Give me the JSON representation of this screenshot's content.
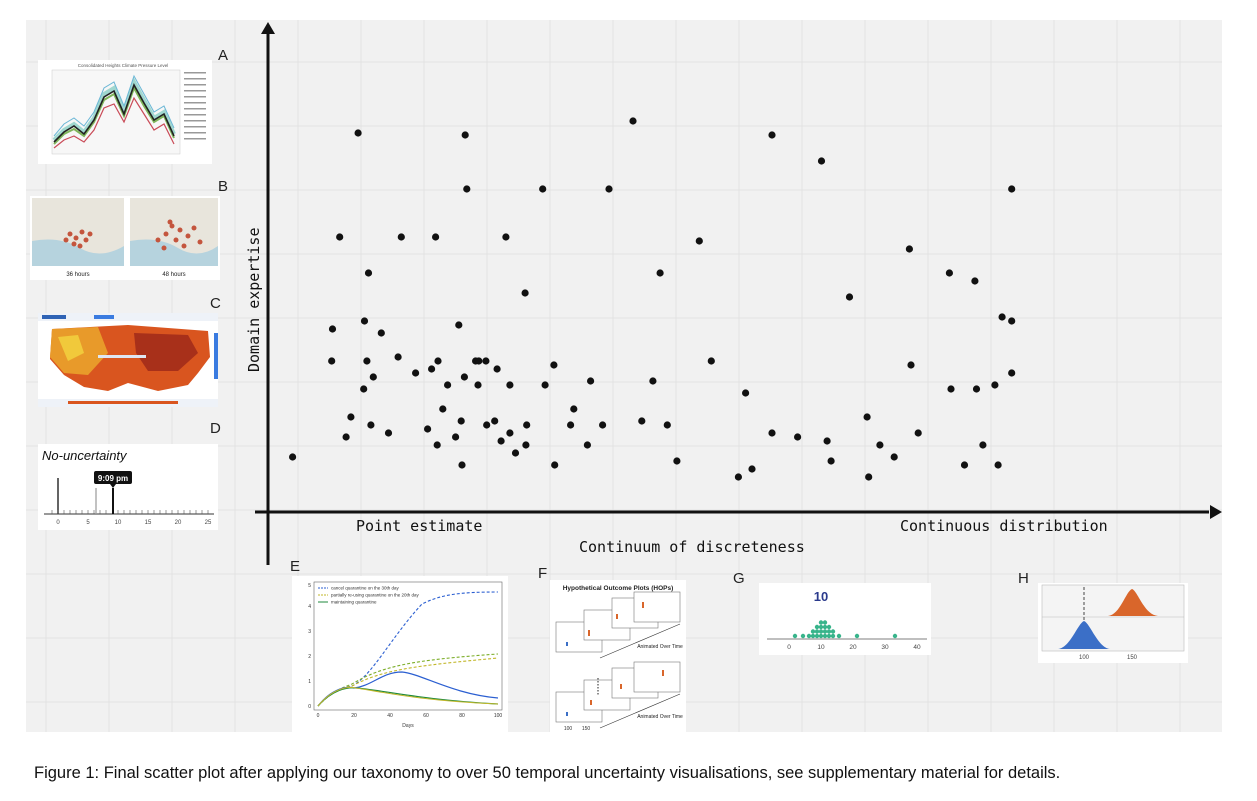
{
  "chart_data": {
    "type": "scatter",
    "xlabel": "Continuum of discreteness",
    "ylabel": "Domain expertise",
    "x_low_label": "Point estimate",
    "x_high_label": "Continuous distribution",
    "xlim": [
      0,
      100
    ],
    "ylim": [
      0,
      100
    ],
    "grid": true,
    "points": [
      {
        "x": 1.2,
        "y": 7
      },
      {
        "x": 9.4,
        "y": 88
      },
      {
        "x": 22.8,
        "y": 87.5
      },
      {
        "x": 43.8,
        "y": 91
      },
      {
        "x": 61.2,
        "y": 87.5
      },
      {
        "x": 23,
        "y": 74
      },
      {
        "x": 32.5,
        "y": 74
      },
      {
        "x": 40.8,
        "y": 74
      },
      {
        "x": 67.4,
        "y": 81
      },
      {
        "x": 91.2,
        "y": 74
      },
      {
        "x": 7.1,
        "y": 62
      },
      {
        "x": 14.8,
        "y": 62
      },
      {
        "x": 19.1,
        "y": 62
      },
      {
        "x": 27.9,
        "y": 62
      },
      {
        "x": 52.1,
        "y": 61
      },
      {
        "x": 91.2,
        "y": 41
      },
      {
        "x": 10.7,
        "y": 53
      },
      {
        "x": 47.2,
        "y": 53
      },
      {
        "x": 86.6,
        "y": 51
      },
      {
        "x": 78.4,
        "y": 59
      },
      {
        "x": 83.4,
        "y": 53
      },
      {
        "x": 6.2,
        "y": 39
      },
      {
        "x": 10.2,
        "y": 41
      },
      {
        "x": 12.3,
        "y": 38
      },
      {
        "x": 22,
        "y": 40
      },
      {
        "x": 30.3,
        "y": 48
      },
      {
        "x": 70.9,
        "y": 47
      },
      {
        "x": 90,
        "y": 42
      },
      {
        "x": 6.1,
        "y": 31
      },
      {
        "x": 10.5,
        "y": 31
      },
      {
        "x": 14.4,
        "y": 32
      },
      {
        "x": 19.4,
        "y": 31
      },
      {
        "x": 24.1,
        "y": 31
      },
      {
        "x": 24.5,
        "y": 31
      },
      {
        "x": 25.4,
        "y": 31
      },
      {
        "x": 33.9,
        "y": 30
      },
      {
        "x": 38.5,
        "y": 26
      },
      {
        "x": 53.6,
        "y": 31
      },
      {
        "x": 78.6,
        "y": 30
      },
      {
        "x": 86.8,
        "y": 24
      },
      {
        "x": 91.2,
        "y": 28
      },
      {
        "x": 11.3,
        "y": 27
      },
      {
        "x": 16.6,
        "y": 28
      },
      {
        "x": 18.6,
        "y": 29
      },
      {
        "x": 20.6,
        "y": 25
      },
      {
        "x": 22.7,
        "y": 27
      },
      {
        "x": 26.8,
        "y": 29
      },
      {
        "x": 24.4,
        "y": 25
      },
      {
        "x": 28.4,
        "y": 25
      },
      {
        "x": 32.8,
        "y": 25
      },
      {
        "x": 46.3,
        "y": 26
      },
      {
        "x": 57.9,
        "y": 23
      },
      {
        "x": 83.6,
        "y": 24
      },
      {
        "x": 89.1,
        "y": 25
      },
      {
        "x": 11,
        "y": 15
      },
      {
        "x": 20,
        "y": 19
      },
      {
        "x": 25.5,
        "y": 15
      },
      {
        "x": 30.5,
        "y": 15
      },
      {
        "x": 36,
        "y": 15
      },
      {
        "x": 40,
        "y": 15
      },
      {
        "x": 10.1,
        "y": 24
      },
      {
        "x": 13.2,
        "y": 13
      },
      {
        "x": 18.1,
        "y": 14
      },
      {
        "x": 21.6,
        "y": 12
      },
      {
        "x": 22.3,
        "y": 16
      },
      {
        "x": 26.5,
        "y": 16
      },
      {
        "x": 27.3,
        "y": 11
      },
      {
        "x": 28.4,
        "y": 13
      },
      {
        "x": 29.1,
        "y": 8
      },
      {
        "x": 38.1,
        "y": 10
      },
      {
        "x": 49.3,
        "y": 6
      },
      {
        "x": 57,
        "y": 2
      },
      {
        "x": 61.2,
        "y": 13
      },
      {
        "x": 73.1,
        "y": 17
      },
      {
        "x": 79.5,
        "y": 13
      },
      {
        "x": 87.6,
        "y": 10
      },
      {
        "x": 8.5,
        "y": 17
      },
      {
        "x": 7.9,
        "y": 12
      },
      {
        "x": 19.3,
        "y": 10
      },
      {
        "x": 22.4,
        "y": 5
      },
      {
        "x": 30.4,
        "y": 10
      },
      {
        "x": 36.4,
        "y": 19
      },
      {
        "x": 44.9,
        "y": 16
      },
      {
        "x": 48.1,
        "y": 15
      },
      {
        "x": 64.4,
        "y": 12
      },
      {
        "x": 68.1,
        "y": 11
      },
      {
        "x": 74.7,
        "y": 10
      },
      {
        "x": 76.5,
        "y": 7
      },
      {
        "x": 85.3,
        "y": 5
      },
      {
        "x": 89.5,
        "y": 5
      },
      {
        "x": 73.3,
        "y": 2
      },
      {
        "x": 68.6,
        "y": 6
      },
      {
        "x": 58.7,
        "y": 4
      },
      {
        "x": 34,
        "y": 5
      }
    ]
  },
  "panels": {
    "A": {
      "letter": "A",
      "title": "Consolidated Heights Climate Pressure Level"
    },
    "B": {
      "letter": "B",
      "left_label": "36 hours",
      "right_label": "48 hours"
    },
    "C": {
      "letter": "C"
    },
    "D": {
      "letter": "D",
      "title": "No-uncertainty",
      "tooltip": "9:09 pm",
      "ticks": [
        "0",
        "5",
        "10",
        "15",
        "20",
        "25"
      ]
    },
    "E": {
      "letter": "E",
      "legend": [
        "cancel quarantine on the 30th day",
        "partially re-using quarantine on the 20th day",
        "maintaining quarantine"
      ],
      "xlabel": "Days",
      "xticks": [
        "0",
        "20",
        "40",
        "60",
        "80",
        "100"
      ],
      "yticks": [
        "0",
        "1",
        "2",
        "3",
        "4",
        "5"
      ]
    },
    "F": {
      "letter": "F",
      "title": "Hypothetical Outcome Plots (HOPs)",
      "caption_top": "Animated Over Time",
      "caption_bottom": "Animated Over Time",
      "ticks": [
        "100",
        "150"
      ]
    },
    "G": {
      "letter": "G",
      "value": "10",
      "ticks": [
        "0",
        "10",
        "20",
        "30",
        "40"
      ]
    },
    "H": {
      "letter": "H",
      "ticks": [
        "100",
        "150"
      ]
    }
  },
  "colors": {
    "background": "#f1f1f1",
    "grid": "#e2e2e2",
    "axis": "#111111",
    "point": "#111111",
    "accent_green": "#38b48b",
    "accent_blue": "#3b6fc7",
    "accent_orange": "#d9662b"
  },
  "caption": "Figure 1: Final scatter plot after applying our taxonomy to over 50 temporal uncertainty visualisations, see supplementary material for details."
}
